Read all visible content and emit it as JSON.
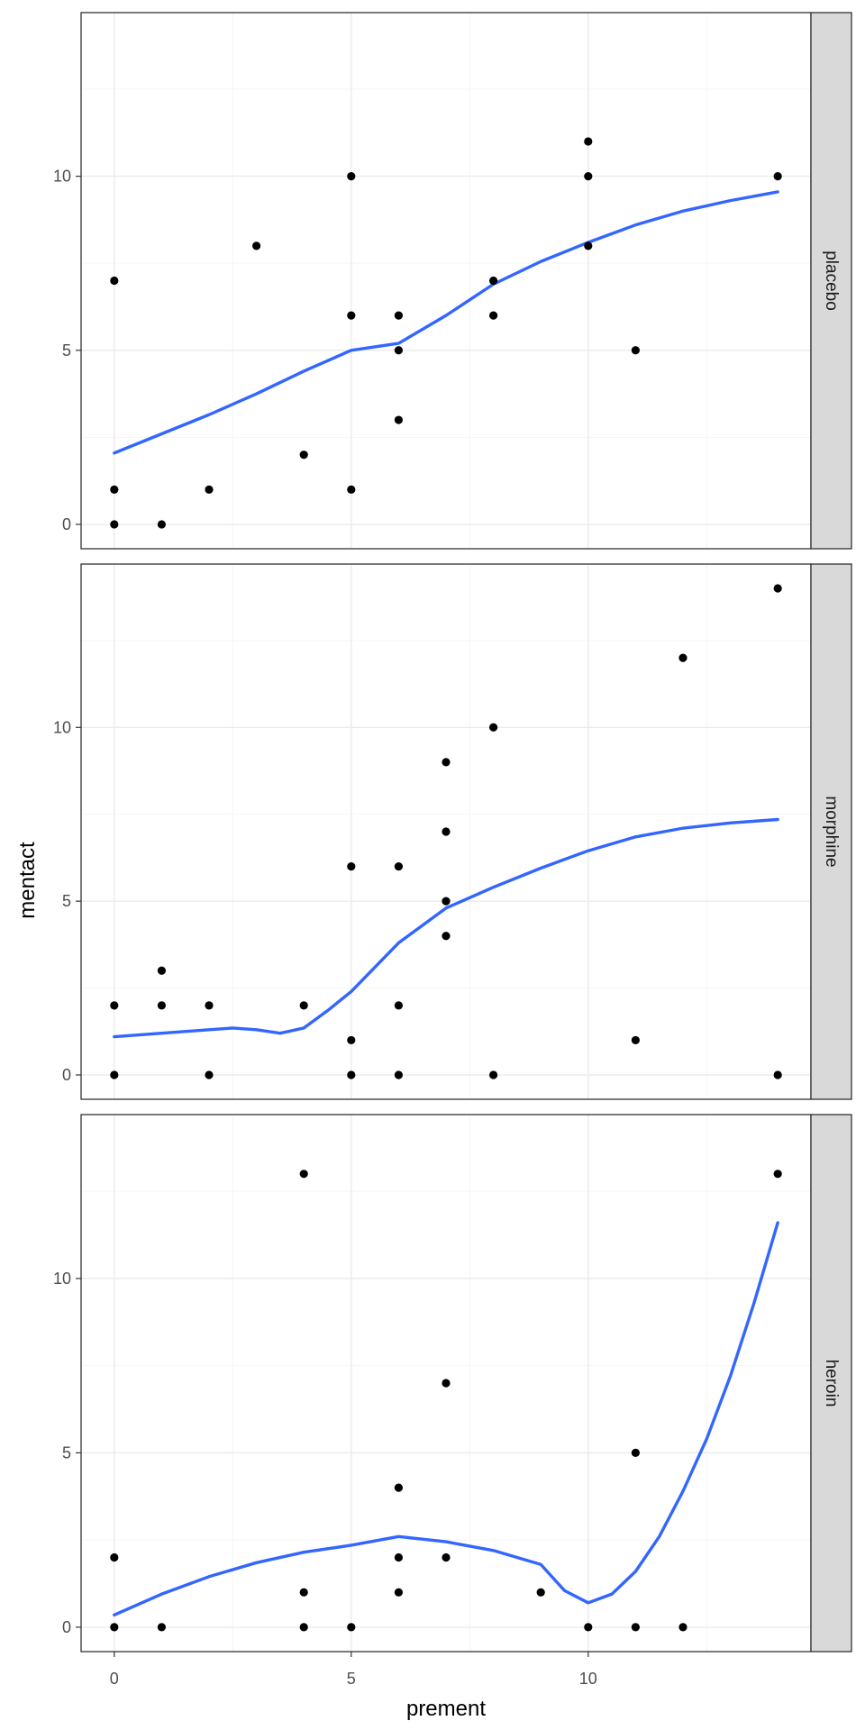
{
  "chart_data": {
    "type": "scatter",
    "title": "",
    "xlabel": "prement",
    "ylabel": "mentact",
    "xlim": [
      -0.7,
      14.7
    ],
    "ylim": [
      -0.7,
      14.7
    ],
    "x_ticks": [
      0,
      5,
      10
    ],
    "y_ticks": [
      0,
      5,
      10
    ],
    "x_minor": [
      2.5,
      7.5,
      12.5
    ],
    "y_minor": [
      2.5,
      7.5,
      12.5
    ],
    "grid": true,
    "facet_position": "right",
    "colors": {
      "points": "#000000",
      "smooth": "#3366FF",
      "strip_fill": "#D9D9D9",
      "panel_border": "#333333",
      "grid_major": "#EBEBEB",
      "grid_minor": "#F5F5F5"
    },
    "panels": [
      {
        "facet": "placebo",
        "points": [
          [
            0,
            7
          ],
          [
            0,
            1
          ],
          [
            0,
            0
          ],
          [
            1,
            0
          ],
          [
            2,
            1
          ],
          [
            3,
            8
          ],
          [
            4,
            2
          ],
          [
            5,
            10
          ],
          [
            5,
            6
          ],
          [
            5,
            1
          ],
          [
            6,
            6
          ],
          [
            6,
            5
          ],
          [
            6,
            3
          ],
          [
            8,
            7
          ],
          [
            8,
            6
          ],
          [
            10,
            11
          ],
          [
            10,
            10
          ],
          [
            10,
            8
          ],
          [
            11,
            5
          ],
          [
            14,
            10
          ]
        ],
        "smooth": [
          [
            0,
            2.05
          ],
          [
            1,
            2.6
          ],
          [
            2,
            3.15
          ],
          [
            3,
            3.75
          ],
          [
            4,
            4.4
          ],
          [
            5,
            5.0
          ],
          [
            5.5,
            5.1
          ],
          [
            6,
            5.2
          ],
          [
            7,
            6.0
          ],
          [
            8,
            6.9
          ],
          [
            9,
            7.55
          ],
          [
            10,
            8.1
          ],
          [
            11,
            8.6
          ],
          [
            12,
            9.0
          ],
          [
            13,
            9.3
          ],
          [
            14,
            9.55
          ]
        ]
      },
      {
        "facet": "morphine",
        "points": [
          [
            0,
            2
          ],
          [
            0,
            0
          ],
          [
            1,
            3
          ],
          [
            1,
            2
          ],
          [
            2,
            2
          ],
          [
            2,
            0
          ],
          [
            4,
            2
          ],
          [
            5,
            6
          ],
          [
            5,
            1
          ],
          [
            5,
            0
          ],
          [
            6,
            6
          ],
          [
            6,
            2
          ],
          [
            6,
            0
          ],
          [
            7,
            9
          ],
          [
            7,
            7
          ],
          [
            7,
            5
          ],
          [
            7,
            4
          ],
          [
            8,
            10
          ],
          [
            8,
            0
          ],
          [
            11,
            1
          ],
          [
            12,
            12
          ],
          [
            14,
            14
          ],
          [
            14,
            0
          ]
        ],
        "smooth": [
          [
            0,
            1.1
          ],
          [
            1,
            1.2
          ],
          [
            2,
            1.3
          ],
          [
            2.5,
            1.35
          ],
          [
            3,
            1.3
          ],
          [
            3.5,
            1.2
          ],
          [
            4,
            1.35
          ],
          [
            4.5,
            1.85
          ],
          [
            5,
            2.4
          ],
          [
            5.5,
            3.1
          ],
          [
            6,
            3.8
          ],
          [
            6.5,
            4.3
          ],
          [
            7,
            4.8
          ],
          [
            8,
            5.4
          ],
          [
            9,
            5.95
          ],
          [
            10,
            6.45
          ],
          [
            11,
            6.85
          ],
          [
            12,
            7.1
          ],
          [
            13,
            7.25
          ],
          [
            14,
            7.35
          ]
        ]
      },
      {
        "facet": "heroin",
        "points": [
          [
            0,
            2
          ],
          [
            0,
            0
          ],
          [
            1,
            0
          ],
          [
            4,
            13
          ],
          [
            4,
            1
          ],
          [
            4,
            0
          ],
          [
            5,
            0
          ],
          [
            6,
            4
          ],
          [
            6,
            2
          ],
          [
            6,
            1
          ],
          [
            7,
            7
          ],
          [
            7,
            2
          ],
          [
            9,
            1
          ],
          [
            10,
            0
          ],
          [
            11,
            5
          ],
          [
            11,
            0
          ],
          [
            12,
            0
          ],
          [
            14,
            13
          ]
        ],
        "smooth": [
          [
            0,
            0.35
          ],
          [
            1,
            0.95
          ],
          [
            2,
            1.45
          ],
          [
            3,
            1.85
          ],
          [
            4,
            2.15
          ],
          [
            5,
            2.35
          ],
          [
            6,
            2.6
          ],
          [
            7,
            2.45
          ],
          [
            8,
            2.2
          ],
          [
            9,
            1.8
          ],
          [
            9.5,
            1.05
          ],
          [
            10,
            0.7
          ],
          [
            10.5,
            0.95
          ],
          [
            11,
            1.6
          ],
          [
            11.5,
            2.6
          ],
          [
            12,
            3.9
          ],
          [
            12.5,
            5.4
          ],
          [
            13,
            7.2
          ],
          [
            13.5,
            9.3
          ],
          [
            14,
            11.6
          ]
        ]
      }
    ]
  }
}
